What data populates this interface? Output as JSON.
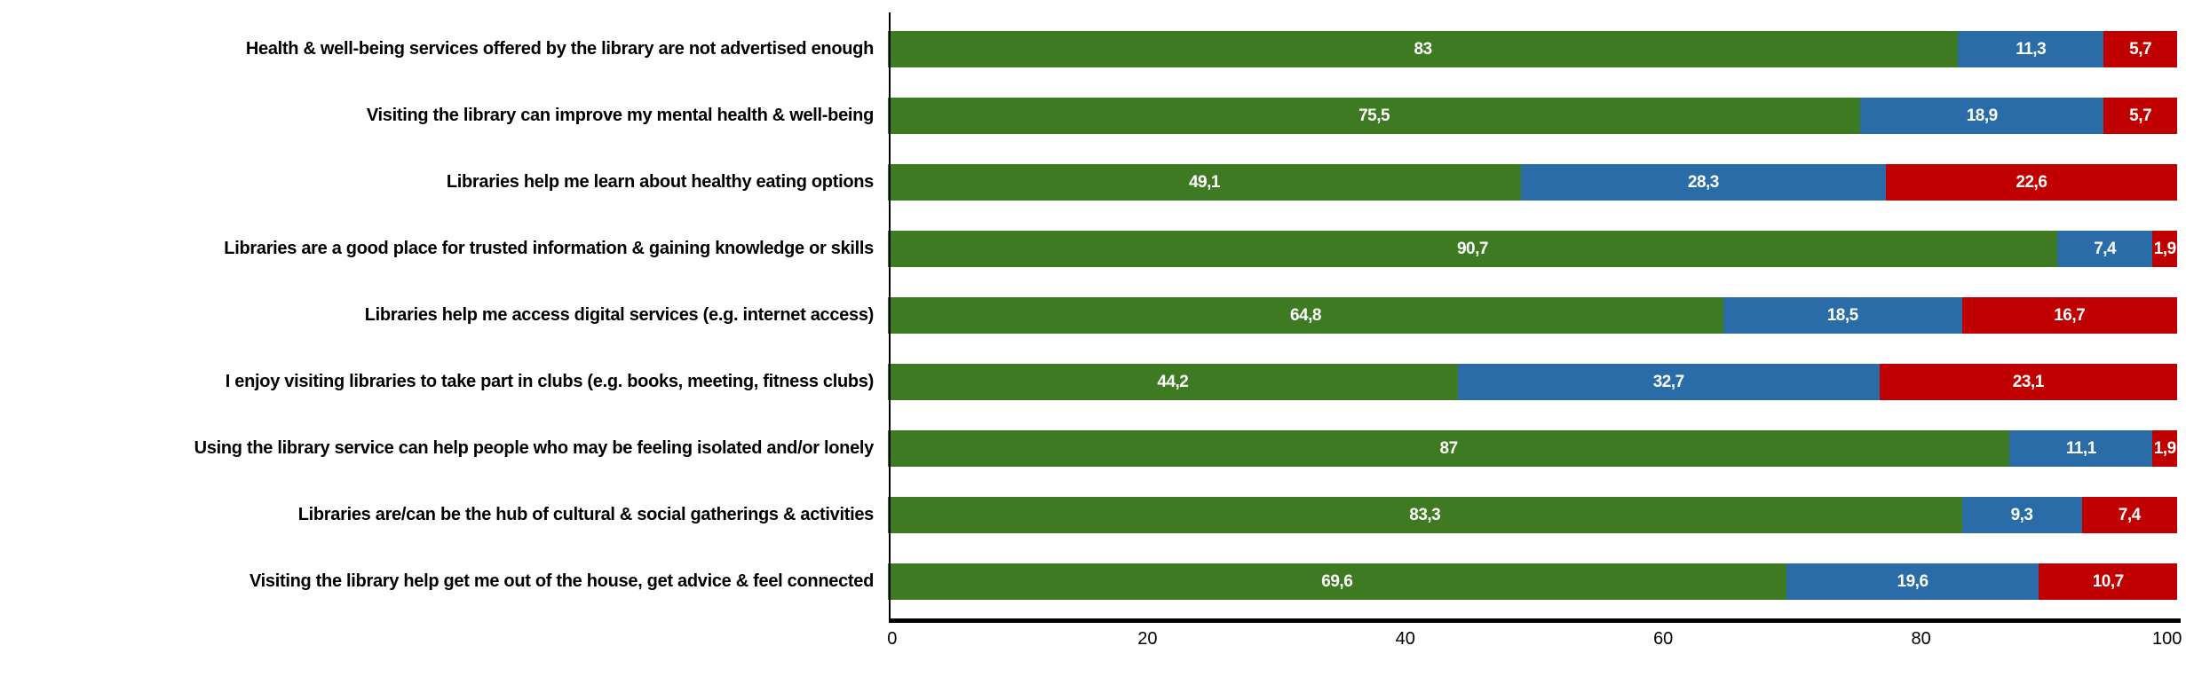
{
  "chart_data": {
    "type": "bar",
    "stacked": true,
    "orientation": "horizontal",
    "categories": [
      "Health & well-being services offered by the library are not advertised enough",
      "Visiting the library can improve my mental health & well-being",
      "Libraries help me learn about healthy eating options",
      "Libraries are a good place for trusted information & gaining knowledge or skills",
      "Libraries help me access digital services (e.g. internet access)",
      "I enjoy visiting libraries to take part in clubs (e.g. books, meeting, fitness clubs)",
      "Using the library service can help people who may be feeling isolated and/or lonely",
      "Libraries are/can be the hub of cultural & social gatherings & activities",
      "Visiting the library help get me out of the house, get advice & feel connected"
    ],
    "series": [
      {
        "name": "green",
        "color": "#3E7A21",
        "values": [
          83,
          75.5,
          49.1,
          90.7,
          64.8,
          44.2,
          87,
          83.3,
          69.6
        ],
        "labels": [
          "83",
          "75,5",
          "49,1",
          "90,7",
          "64,8",
          "44,2",
          "87",
          "83,3",
          "69,6"
        ]
      },
      {
        "name": "blue",
        "color": "#2A6CA8",
        "values": [
          11.3,
          18.9,
          28.3,
          7.4,
          18.5,
          32.7,
          11.1,
          9.3,
          19.6
        ],
        "labels": [
          "11,3",
          "18,9",
          "28,3",
          "7,4",
          "18,5",
          "32,7",
          "11,1",
          "9,3",
          "19,6"
        ]
      },
      {
        "name": "red",
        "color": "#C00000",
        "values": [
          5.7,
          5.7,
          22.6,
          1.9,
          16.7,
          23.1,
          1.9,
          7.4,
          10.7
        ],
        "labels": [
          "5,7",
          "5,7",
          "22,6",
          "1,9",
          "16,7",
          "23,1",
          "1,9",
          "7,4",
          "10,7"
        ]
      }
    ],
    "x_axis": {
      "min": 0,
      "max": 100,
      "ticks": [
        "0",
        "20",
        "40",
        "60",
        "80",
        "100"
      ]
    },
    "grid": false,
    "legend": false,
    "data_label_color": "#FFFFFF",
    "axis_color": "#000000",
    "background_color": "#FFFFFF"
  }
}
